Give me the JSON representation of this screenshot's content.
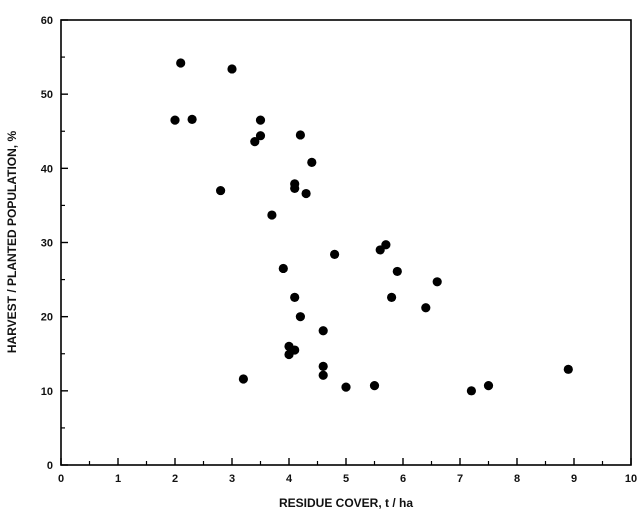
{
  "chart_data": {
    "type": "scatter",
    "title": "",
    "xlabel": "RESIDUE COVER, t / ha",
    "ylabel": "HARVEST / PLANTED POPULATION, %",
    "xlim": [
      0,
      10
    ],
    "ylim": [
      0,
      60
    ],
    "x_ticks": [
      0,
      1,
      2,
      3,
      4,
      5,
      6,
      7,
      8,
      9,
      10
    ],
    "y_ticks": [
      0,
      10,
      20,
      30,
      40,
      50,
      60
    ],
    "grid": false,
    "legend": "none",
    "marker_color": "#000000",
    "points": [
      {
        "x": 2.0,
        "y": 46.5
      },
      {
        "x": 2.1,
        "y": 54.2
      },
      {
        "x": 2.3,
        "y": 46.6
      },
      {
        "x": 2.8,
        "y": 37.0
      },
      {
        "x": 3.0,
        "y": 53.4
      },
      {
        "x": 3.2,
        "y": 11.6
      },
      {
        "x": 3.4,
        "y": 43.6
      },
      {
        "x": 3.5,
        "y": 46.5
      },
      {
        "x": 3.5,
        "y": 44.4
      },
      {
        "x": 3.7,
        "y": 33.7
      },
      {
        "x": 3.9,
        "y": 26.5
      },
      {
        "x": 4.0,
        "y": 16.0
      },
      {
        "x": 4.0,
        "y": 14.9
      },
      {
        "x": 4.1,
        "y": 37.9
      },
      {
        "x": 4.1,
        "y": 37.3
      },
      {
        "x": 4.1,
        "y": 22.6
      },
      {
        "x": 4.1,
        "y": 15.5
      },
      {
        "x": 4.2,
        "y": 44.5
      },
      {
        "x": 4.2,
        "y": 20.0
      },
      {
        "x": 4.3,
        "y": 36.6
      },
      {
        "x": 4.4,
        "y": 40.8
      },
      {
        "x": 4.6,
        "y": 18.1
      },
      {
        "x": 4.6,
        "y": 13.3
      },
      {
        "x": 4.6,
        "y": 12.1
      },
      {
        "x": 4.8,
        "y": 28.4
      },
      {
        "x": 5.0,
        "y": 10.5
      },
      {
        "x": 5.5,
        "y": 10.7
      },
      {
        "x": 5.6,
        "y": 29.0
      },
      {
        "x": 5.7,
        "y": 29.7
      },
      {
        "x": 5.8,
        "y": 22.6
      },
      {
        "x": 5.9,
        "y": 26.1
      },
      {
        "x": 6.4,
        "y": 21.2
      },
      {
        "x": 6.6,
        "y": 24.7
      },
      {
        "x": 7.2,
        "y": 10.0
      },
      {
        "x": 7.5,
        "y": 10.7
      },
      {
        "x": 8.9,
        "y": 12.9
      }
    ]
  }
}
